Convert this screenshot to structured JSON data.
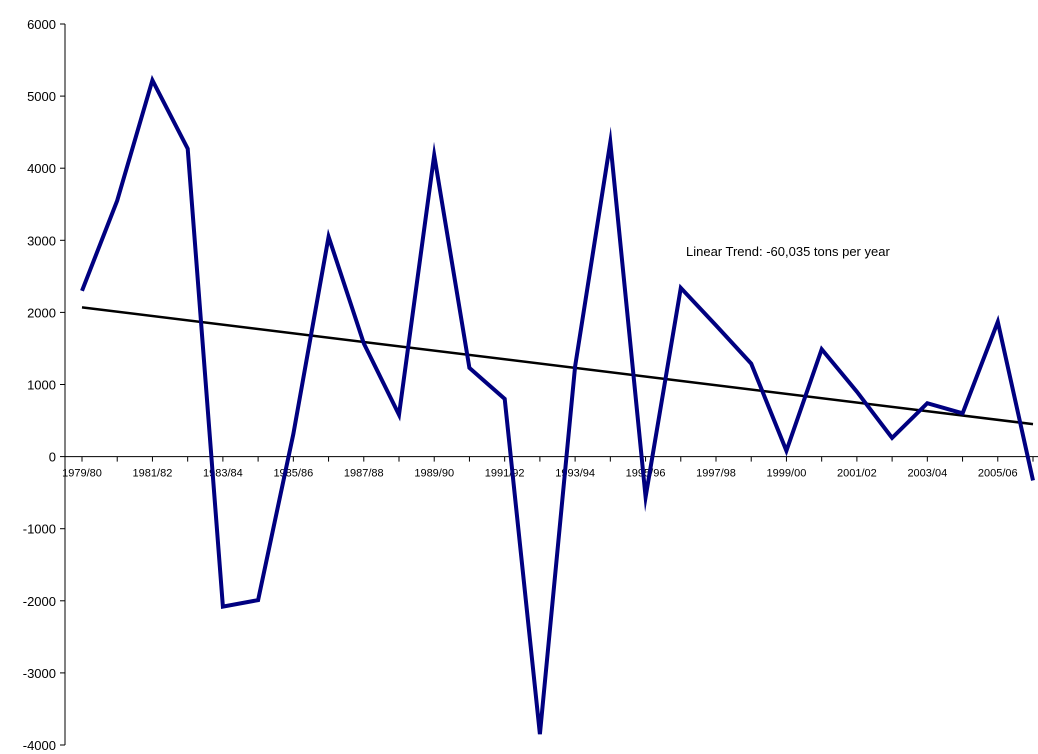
{
  "chart_data": {
    "type": "line",
    "title": "",
    "xlabel": "",
    "ylabel": "",
    "ylim": [
      -4000,
      6000
    ],
    "yticks": [
      6000,
      5000,
      4000,
      3000,
      2000,
      1000,
      0,
      -1000,
      -2000,
      -3000,
      -4000
    ],
    "categories": [
      "1979/80",
      "1980/81",
      "1981/82",
      "1982/83",
      "1983/84",
      "1984/85",
      "1985/86",
      "1986/87",
      "1987/88",
      "1988/89",
      "1989/90",
      "1990/91",
      "1991/92",
      "1992/93",
      "1993/94",
      "1994/95",
      "1995/96",
      "1996/97",
      "1997/98",
      "1998/99",
      "1999/00",
      "2000/01",
      "2001/02",
      "2002/03",
      "2003/04",
      "2004/05",
      "2005/06",
      "2006/07"
    ],
    "category_labels_shown": [
      "1979/80",
      "1981/82",
      "1983/84",
      "1985/86",
      "1987/88",
      "1989/90",
      "1991/92",
      "1993/94",
      "1995/96",
      "1997/98",
      "1999/00",
      "2001/02",
      "2003/04",
      "2005/06"
    ],
    "series": [
      {
        "values": [
          2300,
          3550,
          5220,
          4270,
          -2080,
          -1990,
          310,
          3050,
          1570,
          580,
          4180,
          1230,
          800,
          -3850,
          1250,
          4360,
          -560,
          2340,
          1820,
          1290,
          80,
          1490,
          900,
          260,
          740,
          600,
          1870,
          -330
        ],
        "color": "#000080"
      },
      {
        "kind": "trend",
        "start": 2070,
        "end": 450,
        "color": "#000000"
      }
    ],
    "annotation": "Linear Trend: -60,035 tons per year",
    "grid": false,
    "legend": "none"
  }
}
